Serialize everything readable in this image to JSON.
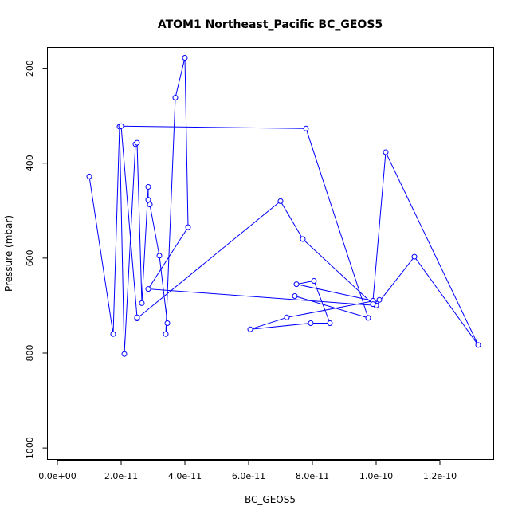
{
  "chart_data": {
    "type": "line",
    "title": "ATOM1 Northeast_Pacific BC_GEOS5",
    "xlabel": "BC_GEOS5",
    "ylabel": "Pressure (mbar)",
    "xlim": [
      -3e-12,
      1.37e-10
    ],
    "ylim": [
      1025,
      157
    ],
    "y_axis_inverted": true,
    "x_ticks": [
      {
        "value": 0,
        "label": "0.0e+00"
      },
      {
        "value": 2e-11,
        "label": "2.0e-11"
      },
      {
        "value": 4e-11,
        "label": "4.0e-11"
      },
      {
        "value": 6e-11,
        "label": "6.0e-11"
      },
      {
        "value": 8e-11,
        "label": "8.0e-11"
      },
      {
        "value": 1e-10,
        "label": "1.0e-10"
      },
      {
        "value": 1.2e-10,
        "label": "1.2e-10"
      }
    ],
    "y_ticks": [
      {
        "value": 200,
        "label": "200"
      },
      {
        "value": 400,
        "label": "400"
      },
      {
        "value": 600,
        "label": "600"
      },
      {
        "value": 800,
        "label": "800"
      },
      {
        "value": 1000,
        "label": "1000"
      }
    ],
    "grid": false,
    "series": [
      {
        "color": "#0000ff",
        "marker": "open-circle",
        "points": [
          [
            1e-11,
            428
          ],
          [
            1.75e-11,
            760
          ],
          [
            1.95e-11,
            323
          ],
          [
            2.1e-11,
            802
          ],
          [
            2.45e-11,
            360
          ],
          [
            2.5e-11,
            357
          ],
          [
            2.65e-11,
            695
          ],
          [
            2.85e-11,
            450
          ],
          [
            2.85e-11,
            477
          ],
          [
            2.9e-11,
            487
          ],
          [
            3.2e-11,
            595
          ],
          [
            3.45e-11,
            737
          ],
          [
            3.4e-11,
            760
          ],
          [
            3.7e-11,
            262
          ],
          [
            4e-11,
            178
          ],
          [
            4.1e-11,
            535
          ],
          [
            2.85e-11,
            665
          ],
          [
            1e-10,
            700
          ],
          [
            1.12e-10,
            597
          ],
          [
            1.32e-10,
            783
          ],
          [
            1.03e-10,
            377
          ],
          [
            9.9e-11,
            690
          ],
          [
            7.5e-11,
            655
          ],
          [
            8.05e-11,
            648
          ],
          [
            8.55e-11,
            737
          ],
          [
            7.95e-11,
            737
          ],
          [
            6.05e-11,
            750
          ],
          [
            7.2e-11,
            725
          ],
          [
            1.01e-10,
            688
          ],
          [
            9.9e-11,
            697
          ],
          [
            7.7e-11,
            560
          ],
          [
            7e-11,
            480
          ],
          [
            2.5e-11,
            727
          ],
          [
            2.5e-11,
            725
          ],
          [
            2e-11,
            322
          ],
          [
            7.8e-11,
            327
          ],
          [
            9.75e-11,
            726
          ],
          [
            7.45e-11,
            680
          ]
        ]
      }
    ]
  }
}
